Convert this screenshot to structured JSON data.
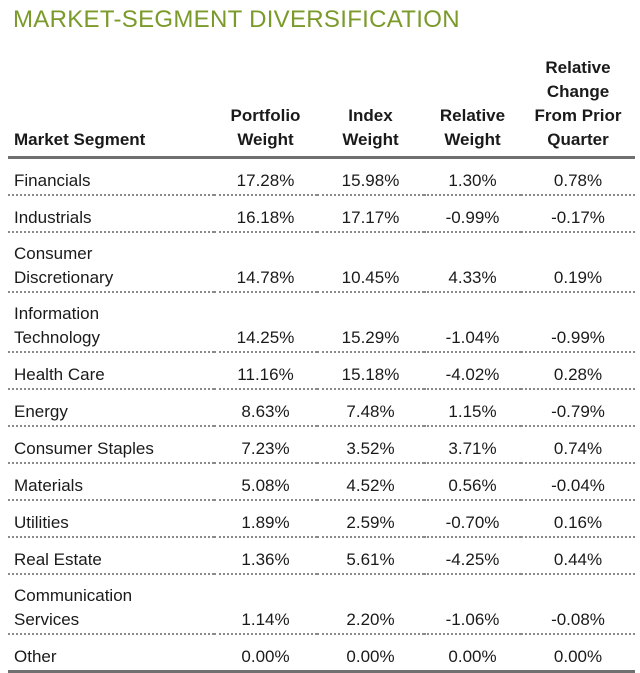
{
  "title": "MARKET-SEGMENT DIVERSIFICATION",
  "table": {
    "headers": {
      "segment": [
        "Market Segment"
      ],
      "portfolio_weight": [
        "Portfolio",
        "Weight"
      ],
      "index_weight": [
        "Index",
        "Weight"
      ],
      "relative_weight": [
        "Relative",
        "Weight"
      ],
      "relative_change": [
        "Relative",
        "Change",
        "From Prior",
        "Quarter"
      ]
    },
    "rows": [
      {
        "segment": [
          "Financials"
        ],
        "portfolio_weight": "17.28%",
        "index_weight": "15.98%",
        "relative_weight": "1.30%",
        "relative_change": "0.78%"
      },
      {
        "segment": [
          "Industrials"
        ],
        "portfolio_weight": "16.18%",
        "index_weight": "17.17%",
        "relative_weight": "-0.99%",
        "relative_change": "-0.17%"
      },
      {
        "segment": [
          "Consumer",
          "Discretionary"
        ],
        "portfolio_weight": "14.78%",
        "index_weight": "10.45%",
        "relative_weight": "4.33%",
        "relative_change": "0.19%"
      },
      {
        "segment": [
          "Information",
          "Technology"
        ],
        "portfolio_weight": "14.25%",
        "index_weight": "15.29%",
        "relative_weight": "-1.04%",
        "relative_change": "-0.99%"
      },
      {
        "segment": [
          "Health Care"
        ],
        "portfolio_weight": "11.16%",
        "index_weight": "15.18%",
        "relative_weight": "-4.02%",
        "relative_change": "0.28%"
      },
      {
        "segment": [
          "Energy"
        ],
        "portfolio_weight": "8.63%",
        "index_weight": "7.48%",
        "relative_weight": "1.15%",
        "relative_change": "-0.79%"
      },
      {
        "segment": [
          "Consumer Staples"
        ],
        "portfolio_weight": "7.23%",
        "index_weight": "3.52%",
        "relative_weight": "3.71%",
        "relative_change": "0.74%"
      },
      {
        "segment": [
          "Materials"
        ],
        "portfolio_weight": "5.08%",
        "index_weight": "4.52%",
        "relative_weight": "0.56%",
        "relative_change": "-0.04%"
      },
      {
        "segment": [
          "Utilities"
        ],
        "portfolio_weight": "1.89%",
        "index_weight": "2.59%",
        "relative_weight": "-0.70%",
        "relative_change": "0.16%"
      },
      {
        "segment": [
          "Real Estate"
        ],
        "portfolio_weight": "1.36%",
        "index_weight": "5.61%",
        "relative_weight": "-4.25%",
        "relative_change": "0.44%"
      },
      {
        "segment": [
          "Communication",
          "Services"
        ],
        "portfolio_weight": "1.14%",
        "index_weight": "2.20%",
        "relative_weight": "-1.06%",
        "relative_change": "-0.08%"
      },
      {
        "segment": [
          "Other"
        ],
        "portfolio_weight": "0.00%",
        "index_weight": "0.00%",
        "relative_weight": "0.00%",
        "relative_change": "0.00%"
      }
    ]
  }
}
